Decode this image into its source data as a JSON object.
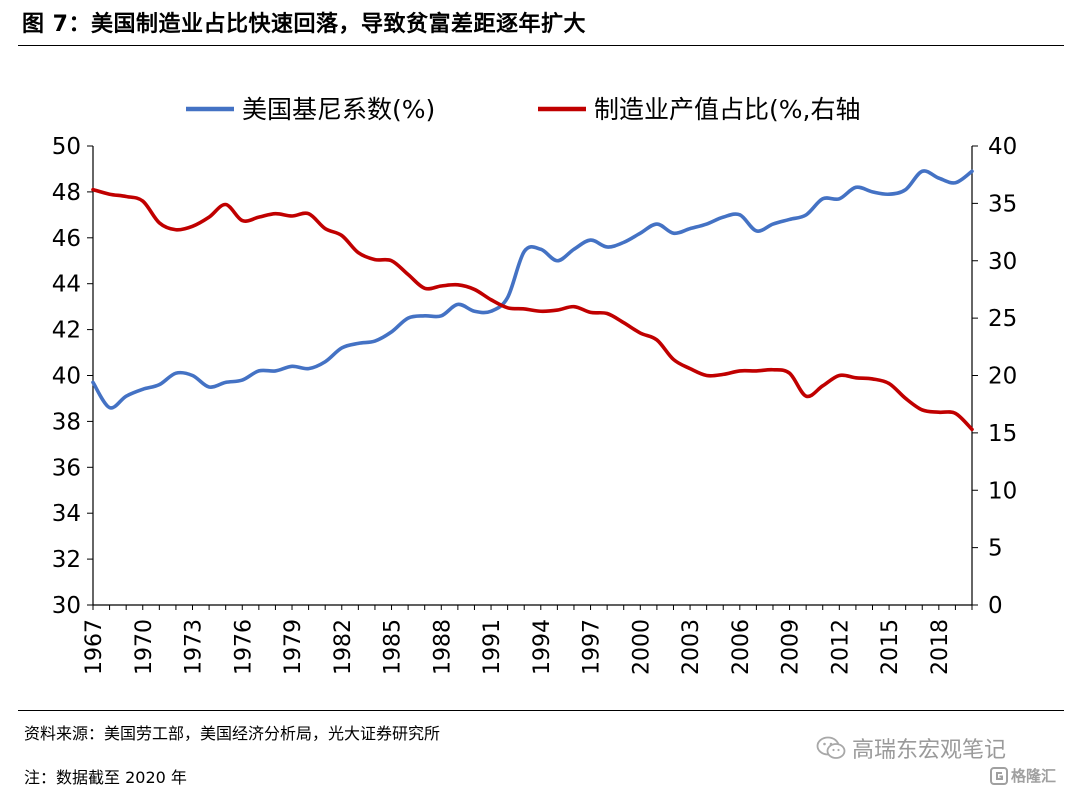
{
  "title": "图 7：美国制造业占比快速回落，导致贫富差距逐年扩大",
  "source": "资料来源：美国劳工部，美国经济分析局，光大证券研究所",
  "note": "注：数据截至 2020 年",
  "watermark": {
    "text": "高瑞东宏观笔记",
    "icon": "wechat-icon"
  },
  "badge": {
    "text": "格隆汇",
    "icon": "gelonghui-logo-icon"
  },
  "chart_data": {
    "type": "line",
    "title": "",
    "grid": false,
    "legend_position": "top",
    "x": [
      1967,
      1968,
      1969,
      1970,
      1971,
      1972,
      1973,
      1974,
      1975,
      1976,
      1977,
      1978,
      1979,
      1980,
      1981,
      1982,
      1983,
      1984,
      1985,
      1986,
      1987,
      1988,
      1989,
      1990,
      1991,
      1992,
      1993,
      1994,
      1995,
      1996,
      1997,
      1998,
      1999,
      2000,
      2001,
      2002,
      2003,
      2004,
      2005,
      2006,
      2007,
      2008,
      2009,
      2010,
      2011,
      2012,
      2013,
      2014,
      2015,
      2016,
      2017,
      2018,
      2019,
      2020
    ],
    "x_tick_labels": [
      "1967",
      "1970",
      "1973",
      "1976",
      "1979",
      "1982",
      "1985",
      "1988",
      "1991",
      "1994",
      "1997",
      "2000",
      "2003",
      "2006",
      "2009",
      "2012",
      "2015",
      "2018"
    ],
    "y_left": {
      "min": 30,
      "max": 50,
      "ticks": [
        30,
        32,
        34,
        36,
        38,
        40,
        42,
        44,
        46,
        48,
        50
      ]
    },
    "y_right": {
      "min": 0,
      "max": 40,
      "ticks": [
        0,
        5,
        10,
        15,
        20,
        25,
        30,
        35,
        40
      ]
    },
    "series": [
      {
        "name": "美国基尼系数(%)",
        "axis": "left",
        "color": "#4472C4",
        "values": [
          39.7,
          38.6,
          39.1,
          39.4,
          39.6,
          40.1,
          40.0,
          39.5,
          39.7,
          39.8,
          40.2,
          40.2,
          40.4,
          40.3,
          40.6,
          41.2,
          41.4,
          41.5,
          41.9,
          42.5,
          42.6,
          42.6,
          43.1,
          42.8,
          42.8,
          43.4,
          45.4,
          45.5,
          45.0,
          45.5,
          45.9,
          45.6,
          45.8,
          46.2,
          46.6,
          46.2,
          46.4,
          46.6,
          46.9,
          47.0,
          46.3,
          46.6,
          46.8,
          47.0,
          47.7,
          47.7,
          48.2,
          48.0,
          47.9,
          48.1,
          48.9,
          48.6,
          48.4,
          48.9
        ]
      },
      {
        "name": "制造业产值占比(%,右轴",
        "axis": "right",
        "color": "#C00000",
        "values": [
          36.2,
          35.8,
          35.6,
          35.2,
          33.3,
          32.7,
          33.0,
          33.8,
          34.9,
          33.5,
          33.8,
          34.1,
          33.9,
          34.1,
          32.8,
          32.2,
          30.7,
          30.1,
          30.0,
          28.8,
          27.6,
          27.8,
          27.9,
          27.5,
          26.6,
          25.9,
          25.8,
          25.6,
          25.7,
          26.0,
          25.5,
          25.4,
          24.6,
          23.7,
          23.1,
          21.4,
          20.6,
          20.0,
          20.1,
          20.4,
          20.4,
          20.5,
          20.2,
          18.2,
          19.1,
          20.0,
          19.8,
          19.7,
          19.3,
          18.0,
          17.0,
          16.8,
          16.7,
          15.3
        ]
      }
    ]
  }
}
